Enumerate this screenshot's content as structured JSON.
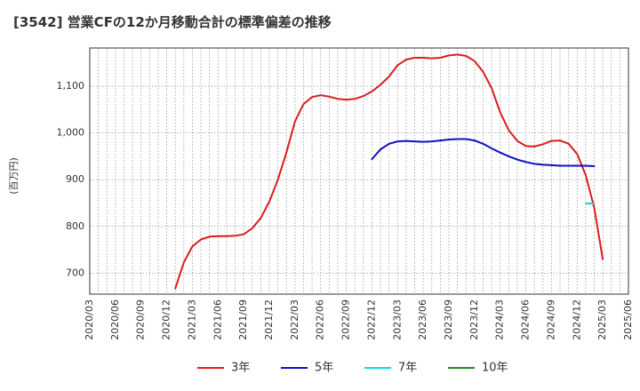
{
  "chart_data": {
    "type": "line",
    "title": "[3542]  営業CFの12か月移動合計の標準偏差の推移",
    "ylabel": "(百万円)",
    "xlabel": "",
    "ylim": [
      655,
      1182
    ],
    "grid": true,
    "legend_position": "bottom",
    "x_tick_labels": [
      "2020/03",
      "2020/06",
      "2020/09",
      "2020/12",
      "2021/03",
      "2021/06",
      "2021/09",
      "2021/12",
      "2022/03",
      "2022/06",
      "2022/09",
      "2022/12",
      "2023/03",
      "2023/06",
      "2023/09",
      "2023/12",
      "2024/03",
      "2024/06",
      "2024/09",
      "2024/12",
      "2025/03",
      "2025/06"
    ],
    "y_ticks": [
      700,
      800,
      900,
      1000,
      1100
    ],
    "y_tick_labels": [
      "700",
      "800",
      "900",
      "1,000",
      "1,100"
    ],
    "series": [
      {
        "name": "3年",
        "color": "#dd1c1c",
        "start": "2021/01",
        "values": [
          667,
          723,
          757,
          772,
          778,
          779,
          779,
          780,
          783,
          796,
          818,
          853,
          900,
          958,
          1025,
          1062,
          1077,
          1081,
          1078,
          1073,
          1071,
          1073,
          1079,
          1089,
          1103,
          1121,
          1145,
          1157,
          1161,
          1161,
          1160,
          1161,
          1166,
          1168,
          1165,
          1154,
          1131,
          1096,
          1044,
          1006,
          983,
          972,
          971,
          976,
          983,
          984,
          977,
          955,
          910,
          840,
          730
        ]
      },
      {
        "name": "5年",
        "color": "#1010c0",
        "start": "2022/12",
        "values": [
          944,
          965,
          977,
          982,
          983,
          982,
          981,
          982,
          984,
          986,
          987,
          987,
          984,
          977,
          967,
          958,
          950,
          943,
          938,
          934,
          932,
          931,
          930,
          930,
          930,
          930,
          929
        ]
      },
      {
        "name": "7年",
        "color": "#00e0e0",
        "start": "2025/01",
        "values": [
          849,
          849
        ]
      },
      {
        "name": "10年",
        "color": "#228B22",
        "start": "2025/03",
        "values": []
      }
    ]
  }
}
